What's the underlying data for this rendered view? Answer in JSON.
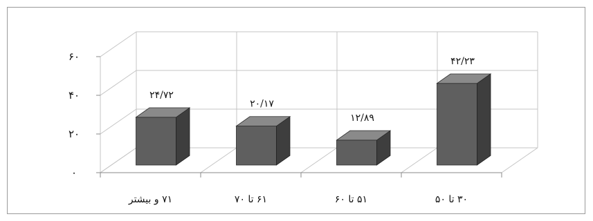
{
  "chart_data": {
    "type": "bar",
    "style": "3d-column",
    "categories": [
      "۷۱ و بیشتر",
      "۶۱ تا ۷۰",
      "۵۱ تا ۶۰",
      "۳۰ تا ۵۰"
    ],
    "values": [
      24.72,
      20.17,
      12.89,
      42.23
    ],
    "value_labels": [
      "۲۴/۷۲",
      "۲۰/۱۷",
      "۱۲/۸۹",
      "۴۲/۲۳"
    ],
    "yticks": [
      0,
      20,
      40,
      60
    ],
    "ytick_labels": [
      "۰",
      "۲۰",
      "۴۰",
      "۶۰"
    ],
    "ylim": [
      0,
      60
    ],
    "title": "",
    "xlabel": "",
    "ylabel": "",
    "grid": true,
    "legend": "none",
    "colors": {
      "bar_front": "#5f5f5f",
      "bar_side": "#3e3e3e",
      "bar_top": "#8a8a8a",
      "grid": "#c4c4c4",
      "frame": "#9a9a9a"
    }
  }
}
